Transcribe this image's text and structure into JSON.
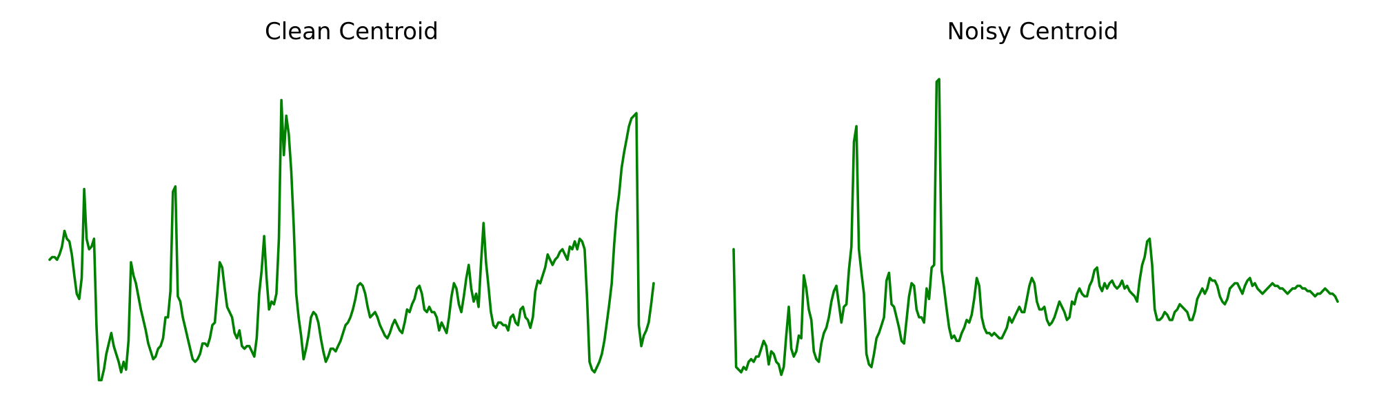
{
  "figure": {
    "line_color": "#008000",
    "background": "#ffffff"
  },
  "chart_data": [
    {
      "type": "line",
      "title": "Clean Centroid",
      "xlabel": "",
      "ylabel": "",
      "axes_visible": false,
      "grid": false,
      "xlim": [
        0,
        240
      ],
      "ylim": [
        -0.03,
        1.18
      ],
      "series": [
        {
          "values": [
            0.44,
            0.45,
            0.45,
            0.44,
            0.46,
            0.49,
            0.55,
            0.52,
            0.51,
            0.46,
            0.38,
            0.31,
            0.29,
            0.37,
            0.71,
            0.52,
            0.48,
            0.49,
            0.52,
            0.19,
            -0.02,
            -0.02,
            0.02,
            0.08,
            0.12,
            0.16,
            0.11,
            0.08,
            0.05,
            0.01,
            0.05,
            0.02,
            0.13,
            0.43,
            0.38,
            0.35,
            0.3,
            0.25,
            0.21,
            0.17,
            0.12,
            0.09,
            0.06,
            0.07,
            0.1,
            0.11,
            0.14,
            0.22,
            0.22,
            0.32,
            0.7,
            0.72,
            0.3,
            0.28,
            0.22,
            0.18,
            0.14,
            0.1,
            0.06,
            0.05,
            0.06,
            0.08,
            0.12,
            0.12,
            0.11,
            0.14,
            0.19,
            0.2,
            0.31,
            0.43,
            0.41,
            0.33,
            0.26,
            0.24,
            0.22,
            0.16,
            0.14,
            0.17,
            0.11,
            0.1,
            0.11,
            0.11,
            0.09,
            0.07,
            0.14,
            0.31,
            0.4,
            0.53,
            0.37,
            0.25,
            0.28,
            0.27,
            0.31,
            0.52,
            1.05,
            0.84,
            0.99,
            0.92,
            0.78,
            0.57,
            0.31,
            0.22,
            0.15,
            0.06,
            0.1,
            0.15,
            0.22,
            0.24,
            0.23,
            0.2,
            0.14,
            0.09,
            0.05,
            0.07,
            0.1,
            0.1,
            0.09,
            0.11,
            0.13,
            0.16,
            0.19,
            0.2,
            0.22,
            0.25,
            0.29,
            0.34,
            0.35,
            0.34,
            0.31,
            0.26,
            0.22,
            0.23,
            0.24,
            0.22,
            0.19,
            0.17,
            0.15,
            0.14,
            0.16,
            0.19,
            0.21,
            0.19,
            0.17,
            0.16,
            0.2,
            0.25,
            0.24,
            0.27,
            0.29,
            0.33,
            0.34,
            0.31,
            0.25,
            0.24,
            0.26,
            0.24,
            0.24,
            0.22,
            0.17,
            0.2,
            0.18,
            0.16,
            0.22,
            0.3,
            0.35,
            0.33,
            0.27,
            0.24,
            0.3,
            0.37,
            0.42,
            0.33,
            0.28,
            0.31,
            0.26,
            0.43,
            0.58,
            0.43,
            0.34,
            0.24,
            0.19,
            0.18,
            0.2,
            0.2,
            0.19,
            0.19,
            0.17,
            0.22,
            0.23,
            0.2,
            0.19,
            0.25,
            0.26,
            0.22,
            0.21,
            0.18,
            0.22,
            0.32,
            0.36,
            0.35,
            0.38,
            0.41,
            0.46,
            0.44,
            0.42,
            0.44,
            0.45,
            0.47,
            0.48,
            0.46,
            0.44,
            0.49,
            0.48,
            0.51,
            0.48,
            0.52,
            0.51,
            0.48,
            0.29,
            0.05,
            0.02,
            0.01,
            0.03,
            0.05,
            0.08,
            0.13,
            0.2,
            0.27,
            0.35,
            0.5,
            0.62,
            0.69,
            0.79,
            0.85,
            0.9,
            0.95,
            0.98,
            0.99,
            1.0,
            0.19,
            0.11,
            0.15,
            0.17,
            0.2,
            0.27,
            0.35
          ]
        }
      ]
    },
    {
      "type": "line",
      "title": "Noisy Centroid",
      "xlabel": "",
      "ylabel": "",
      "axes_visible": false,
      "grid": false,
      "xlim": [
        0,
        240
      ],
      "ylim": [
        -0.03,
        1.18
      ],
      "series": [
        {
          "values": [
            0.48,
            0.03,
            0.02,
            0.01,
            0.03,
            0.02,
            0.05,
            0.06,
            0.05,
            0.07,
            0.07,
            0.1,
            0.13,
            0.11,
            0.04,
            0.09,
            0.08,
            0.05,
            0.04,
            0.0,
            0.03,
            0.15,
            0.26,
            0.1,
            0.07,
            0.09,
            0.15,
            0.14,
            0.38,
            0.33,
            0.25,
            0.21,
            0.09,
            0.06,
            0.05,
            0.12,
            0.16,
            0.18,
            0.22,
            0.28,
            0.32,
            0.34,
            0.27,
            0.2,
            0.26,
            0.27,
            0.4,
            0.49,
            0.89,
            0.95,
            0.48,
            0.39,
            0.31,
            0.08,
            0.04,
            0.03,
            0.08,
            0.14,
            0.16,
            0.19,
            0.22,
            0.36,
            0.39,
            0.27,
            0.26,
            0.22,
            0.18,
            0.13,
            0.12,
            0.21,
            0.3,
            0.35,
            0.34,
            0.25,
            0.22,
            0.22,
            0.2,
            0.33,
            0.29,
            0.41,
            0.42,
            1.12,
            1.13,
            0.4,
            0.33,
            0.25,
            0.18,
            0.14,
            0.15,
            0.13,
            0.13,
            0.16,
            0.18,
            0.21,
            0.2,
            0.23,
            0.29,
            0.37,
            0.34,
            0.22,
            0.18,
            0.16,
            0.16,
            0.15,
            0.16,
            0.15,
            0.14,
            0.14,
            0.16,
            0.18,
            0.22,
            0.2,
            0.22,
            0.24,
            0.26,
            0.24,
            0.24,
            0.29,
            0.34,
            0.37,
            0.35,
            0.28,
            0.25,
            0.25,
            0.26,
            0.21,
            0.19,
            0.2,
            0.22,
            0.25,
            0.28,
            0.26,
            0.24,
            0.21,
            0.22,
            0.28,
            0.27,
            0.31,
            0.33,
            0.31,
            0.3,
            0.3,
            0.34,
            0.36,
            0.4,
            0.41,
            0.34,
            0.32,
            0.35,
            0.33,
            0.35,
            0.36,
            0.34,
            0.33,
            0.34,
            0.36,
            0.33,
            0.34,
            0.32,
            0.31,
            0.3,
            0.28,
            0.36,
            0.42,
            0.45,
            0.51,
            0.52,
            0.42,
            0.25,
            0.21,
            0.21,
            0.22,
            0.24,
            0.23,
            0.21,
            0.21,
            0.24,
            0.25,
            0.27,
            0.26,
            0.25,
            0.24,
            0.21,
            0.21,
            0.24,
            0.29,
            0.31,
            0.33,
            0.31,
            0.33,
            0.37,
            0.36,
            0.36,
            0.34,
            0.3,
            0.28,
            0.27,
            0.29,
            0.33,
            0.34,
            0.35,
            0.35,
            0.33,
            0.31,
            0.34,
            0.36,
            0.37,
            0.34,
            0.35,
            0.33,
            0.32,
            0.31,
            0.32,
            0.33,
            0.34,
            0.35,
            0.34,
            0.34,
            0.33,
            0.33,
            0.32,
            0.31,
            0.32,
            0.33,
            0.33,
            0.34,
            0.34,
            0.33,
            0.33,
            0.32,
            0.32,
            0.31,
            0.3,
            0.31,
            0.31,
            0.32,
            0.33,
            0.32,
            0.31,
            0.31,
            0.3,
            0.28
          ]
        }
      ]
    }
  ]
}
